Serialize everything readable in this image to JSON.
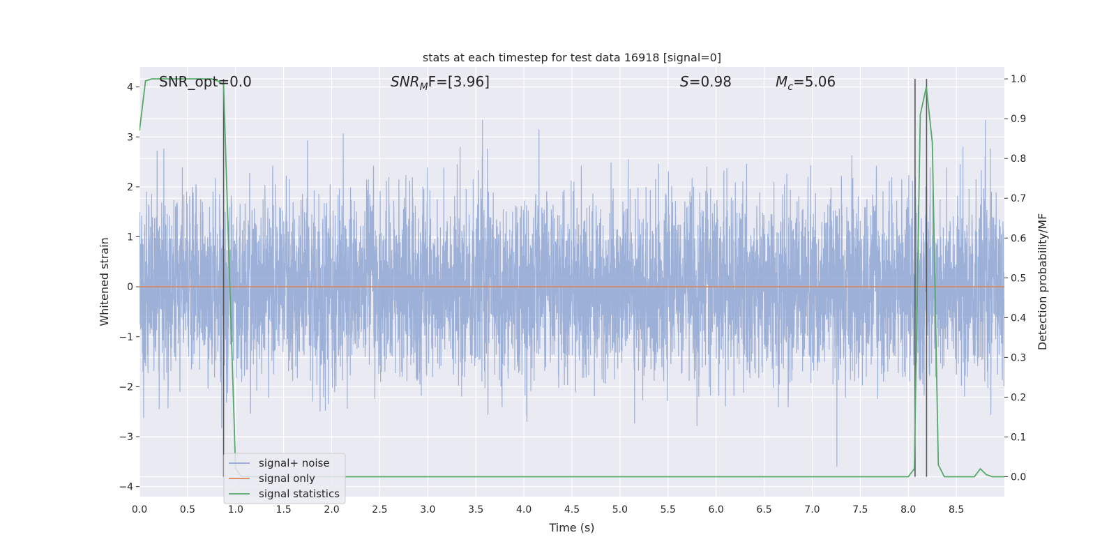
{
  "chart_data": {
    "type": "line",
    "title": "stats at each timestep for test data 16918 [signal=0]",
    "xlabel": "Time (s)",
    "ylabel_left": "Whitened strain",
    "ylabel_right": "Detection probability/MF",
    "xlim": [
      0.0,
      9.0
    ],
    "ylim_left": [
      -4.2,
      4.4
    ],
    "ylim_right": [
      -0.05,
      1.03
    ],
    "x_ticks": [
      0.0,
      0.5,
      1.0,
      1.5,
      2.0,
      2.5,
      3.0,
      3.5,
      4.0,
      4.5,
      5.0,
      5.5,
      6.0,
      6.5,
      7.0,
      7.5,
      8.0,
      8.5
    ],
    "x_tick_labels": [
      "0.0",
      "0.5",
      "1.0",
      "1.5",
      "2.0",
      "2.5",
      "3.0",
      "3.5",
      "4.0",
      "4.5",
      "5.0",
      "5.5",
      "6.0",
      "6.5",
      "7.0",
      "7.5",
      "8.0",
      "8.5"
    ],
    "y_left_ticks": [
      -4,
      -3,
      -2,
      -1,
      0,
      1,
      2,
      3,
      4
    ],
    "y_left_tick_labels": [
      "−4",
      "−3",
      "−2",
      "−1",
      "0",
      "1",
      "2",
      "3",
      "4"
    ],
    "y_right_ticks": [
      0.0,
      0.1,
      0.2,
      0.3,
      0.4,
      0.5,
      0.6,
      0.7,
      0.8,
      0.9,
      1.0
    ],
    "y_right_tick_labels": [
      "0.0",
      "0.1",
      "0.2",
      "0.3",
      "0.4",
      "0.5",
      "0.6",
      "0.7",
      "0.8",
      "0.9",
      "1.0"
    ],
    "grid": true,
    "legend_placement": "lower-left",
    "annotations": [
      {
        "text": "SNR_opt=0.0",
        "x": 0.2,
        "y_axis_frac": 0.95
      },
      {
        "text": "SNR_MF=[3.96]",
        "base": "SNR",
        "sub": "M",
        "rest": "F=[3.96]",
        "italic_base": true,
        "x": 2.6
      },
      {
        "text": "S=0.98",
        "base": "S",
        "rest": "=0.98",
        "italic_base": true,
        "x": 5.6
      },
      {
        "text": "M_c=5.06",
        "base": "M",
        "sub": "c",
        "rest": "=5.06",
        "italic_base": true,
        "x": 6.6
      }
    ],
    "series": [
      {
        "name": "signal+ noise",
        "color": "#8fa6d3",
        "axis": "left",
        "description_kind": "noisy_whitened_strain",
        "sample_rate_hz": 2048,
        "value_range": [
          -3.7,
          3.6
        ],
        "typical_band": [
          -2.2,
          2.3
        ]
      },
      {
        "name": "signal only",
        "color": "#dd8452",
        "axis": "left",
        "x": [
          0.0,
          9.0
        ],
        "y": [
          0.0,
          0.0
        ]
      },
      {
        "name": "signal statistics",
        "color": "#55a868",
        "axis": "right",
        "x": [
          0.0,
          0.0625,
          0.125,
          0.1875,
          0.25,
          0.3125,
          0.375,
          0.4375,
          0.5,
          0.5625,
          0.625,
          0.6875,
          0.75,
          0.8125,
          0.875,
          0.9375,
          1.0,
          1.0625,
          1.125,
          1.5,
          2.0,
          3.0,
          4.0,
          5.0,
          6.0,
          7.0,
          7.5,
          8.0,
          8.0625,
          8.125,
          8.1875,
          8.25,
          8.3125,
          8.375,
          8.5,
          8.625,
          8.6875,
          8.75,
          8.8125,
          8.875,
          9.0
        ],
        "y": [
          0.87,
          0.995,
          1.0,
          1.0,
          1.0,
          1.0,
          1.0,
          1.0,
          1.0,
          1.0,
          1.0,
          1.0,
          1.0,
          0.995,
          0.985,
          0.5,
          0.02,
          0.0,
          0.0,
          0.0,
          0.0,
          0.0,
          0.0,
          0.0,
          0.0,
          0.0,
          0.0,
          0.0,
          0.02,
          0.91,
          0.98,
          0.84,
          0.03,
          0.0,
          0.0,
          0.0,
          0.0,
          0.02,
          0.005,
          0.0,
          0.0
        ]
      }
    ],
    "vertical_lines": [
      {
        "x": 0.875,
        "y_right_range": [
          0.0,
          1.0
        ],
        "color": "#555555"
      },
      {
        "x": 8.07,
        "y_right_range": [
          0.0,
          1.0
        ],
        "color": "#555555"
      },
      {
        "x": 8.19,
        "y_right_range": [
          0.0,
          1.0
        ],
        "color": "#555555"
      }
    ]
  }
}
